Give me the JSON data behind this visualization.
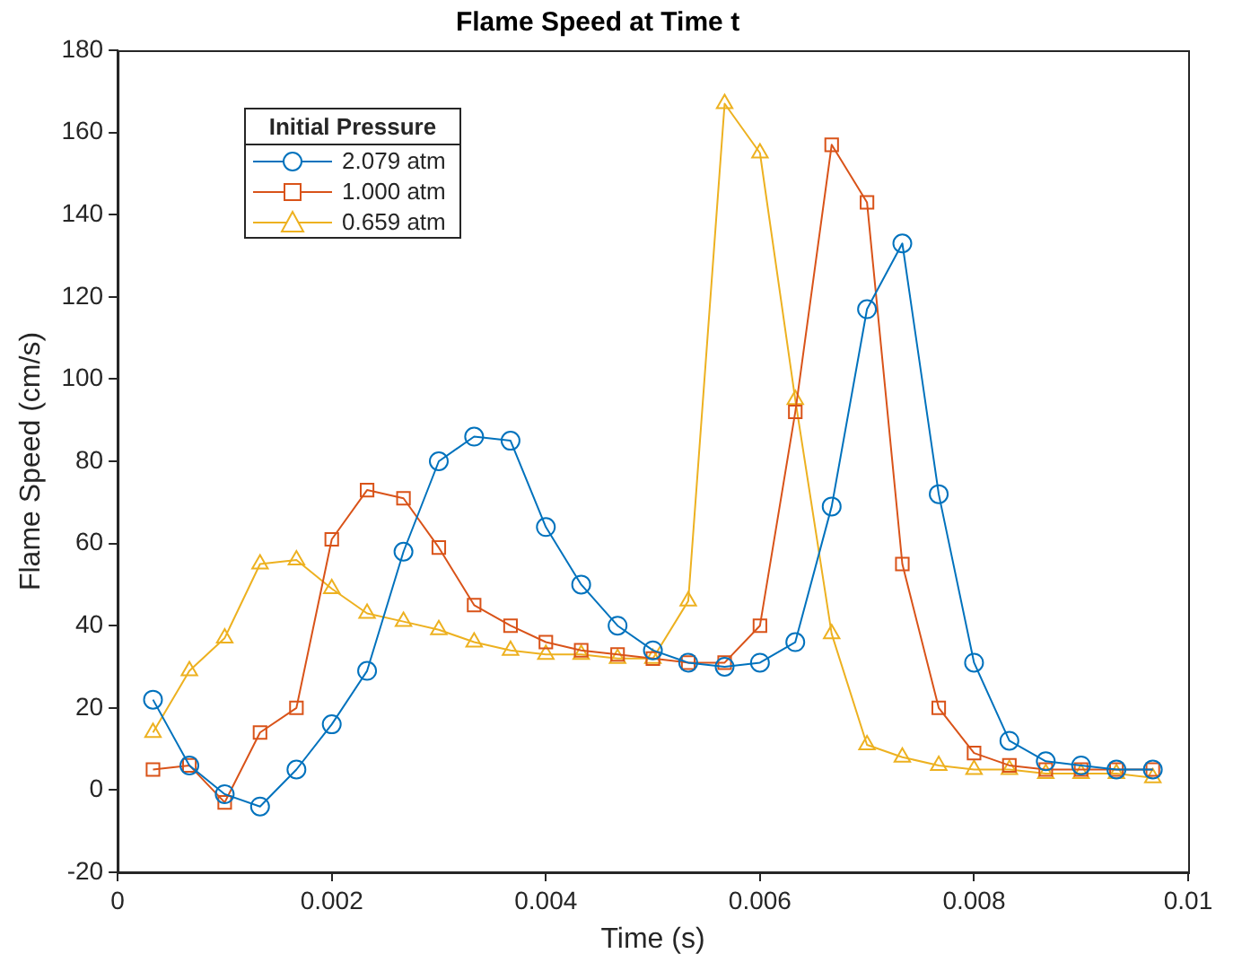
{
  "chart_data": {
    "type": "line",
    "title": "Flame Speed at Time t",
    "xlabel": "Time (s)",
    "ylabel": "Flame Speed (cm/s)",
    "legend_title": "Initial Pressure",
    "legend": "top left",
    "grid": false,
    "line_style": "solid",
    "x": [
      0.00033,
      0.00067,
      0.001,
      0.00133,
      0.00167,
      0.002,
      0.00233,
      0.00267,
      0.003,
      0.00333,
      0.00367,
      0.004,
      0.00433,
      0.00467,
      0.005,
      0.00533,
      0.00567,
      0.006,
      0.00633,
      0.00667,
      0.007,
      0.00733,
      0.00767,
      0.008,
      0.00833,
      0.00867,
      0.009,
      0.00933,
      0.00967
    ],
    "xlim": [
      0,
      0.01
    ],
    "xticks": [
      0,
      0.002,
      0.004,
      0.006,
      0.008,
      0.01
    ],
    "ylim": [
      -20,
      180
    ],
    "yticks": [
      -20,
      0,
      20,
      40,
      60,
      80,
      100,
      120,
      140,
      160,
      180
    ],
    "series": [
      {
        "name": "2.079 atm",
        "color": "#0072bd",
        "marker": "circle",
        "values": [
          22,
          6,
          -1,
          -4,
          5,
          16,
          29,
          58,
          80,
          86,
          85,
          64,
          50,
          40,
          34,
          31,
          30,
          31,
          36,
          69,
          117,
          133,
          72,
          31,
          12,
          7,
          6,
          5,
          5
        ]
      },
      {
        "name": "1.000 atm",
        "color": "#d95319",
        "marker": "square",
        "values": [
          5,
          6,
          -3,
          14,
          20,
          61,
          73,
          71,
          59,
          45,
          40,
          36,
          34,
          33,
          32,
          31,
          31,
          40,
          92,
          157,
          143,
          55,
          20,
          9,
          6,
          5,
          5,
          5,
          5
        ]
      },
      {
        "name": "0.659 atm",
        "color": "#edb120",
        "marker": "triangle",
        "values": [
          14,
          29,
          37,
          55,
          56,
          49,
          43,
          41,
          39,
          36,
          34,
          33,
          33,
          32,
          32,
          46,
          167,
          155,
          95,
          38,
          11,
          8,
          6,
          5,
          5,
          4,
          4,
          4,
          3
        ]
      }
    ]
  }
}
